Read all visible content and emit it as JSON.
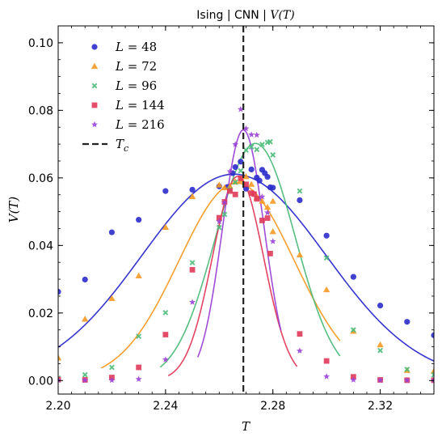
{
  "chart_data": {
    "type": "scatter",
    "title": "Ising | CNN | V(T)",
    "xlabel": "T",
    "ylabel": "V(T)",
    "xlim": [
      2.2,
      2.34
    ],
    "ylim": [
      -0.004,
      0.105
    ],
    "xticks": [
      2.2,
      2.24,
      2.28,
      2.32
    ],
    "xtick_labels": [
      "2.20",
      "2.24",
      "2.28",
      "2.32"
    ],
    "yticks": [
      0.0,
      0.02,
      0.04,
      0.06,
      0.08,
      0.1
    ],
    "ytick_labels": [
      "0.00",
      "0.02",
      "0.04",
      "0.06",
      "0.08",
      "0.10"
    ],
    "grid": false,
    "legend_position": "top-left",
    "tc": 2.269,
    "tc_label": "T_c",
    "series": [
      {
        "name": "L = 48",
        "label_main": "L",
        "label_rest": " = 48",
        "color": "#2b2bcc",
        "marker": "circle",
        "points": [
          [
            2.2,
            0.0263
          ],
          [
            2.21,
            0.0299
          ],
          [
            2.22,
            0.0439
          ],
          [
            2.23,
            0.0476
          ],
          [
            2.24,
            0.0561
          ],
          [
            2.25,
            0.0565
          ],
          [
            2.26,
            0.0575
          ],
          [
            2.263,
            0.0573
          ],
          [
            2.265,
            0.0614
          ],
          [
            2.266,
            0.0632
          ],
          [
            2.268,
            0.0648
          ],
          [
            2.27,
            0.0568
          ],
          [
            2.272,
            0.0625
          ],
          [
            2.274,
            0.0601
          ],
          [
            2.275,
            0.0592
          ],
          [
            2.276,
            0.0624
          ],
          [
            2.277,
            0.0614
          ],
          [
            2.278,
            0.0603
          ],
          [
            2.279,
            0.0572
          ],
          [
            2.28,
            0.0571
          ],
          [
            2.29,
            0.0534
          ],
          [
            2.3,
            0.0429
          ],
          [
            2.31,
            0.0307
          ],
          [
            2.32,
            0.0222
          ],
          [
            2.33,
            0.0174
          ],
          [
            2.34,
            0.0134
          ]
        ],
        "fit": {
          "amp": 0.0611,
          "mu": 2.2655,
          "sigma": 0.0343,
          "x0": 2.2,
          "x1": 2.34
        }
      },
      {
        "name": "L = 72",
        "label_main": "L",
        "label_rest": " = 72",
        "color": "#f59a23",
        "marker": "triangle",
        "points": [
          [
            2.2,
            0.0067
          ],
          [
            2.21,
            0.0182
          ],
          [
            2.22,
            0.0243
          ],
          [
            2.23,
            0.031
          ],
          [
            2.24,
            0.0454
          ],
          [
            2.25,
            0.0545
          ],
          [
            2.26,
            0.0579
          ],
          [
            2.262,
            0.0571
          ],
          [
            2.264,
            0.0575
          ],
          [
            2.266,
            0.0588
          ],
          [
            2.268,
            0.0593
          ],
          [
            2.27,
            0.0604
          ],
          [
            2.272,
            0.0581
          ],
          [
            2.274,
            0.0542
          ],
          [
            2.276,
            0.0531
          ],
          [
            2.278,
            0.0513
          ],
          [
            2.28,
            0.0531
          ],
          [
            2.28,
            0.0441
          ],
          [
            2.29,
            0.0372
          ],
          [
            2.3,
            0.0269
          ],
          [
            2.31,
            0.0146
          ],
          [
            2.32,
            0.0106
          ],
          [
            2.33,
            0.003
          ],
          [
            2.34,
            0.0028
          ]
        ],
        "fit": {
          "amp": 0.0585,
          "mu": 2.2665,
          "sigma": 0.0215,
          "x0": 2.216,
          "x1": 2.305
        }
      },
      {
        "name": "L = 96",
        "label_main": "L",
        "label_rest": " = 96",
        "color": "#4dbb7a",
        "marker": "x",
        "points": [
          [
            2.2,
            0.0007
          ],
          [
            2.21,
            0.0017
          ],
          [
            2.22,
            0.0039
          ],
          [
            2.23,
            0.0131
          ],
          [
            2.24,
            0.0201
          ],
          [
            2.25,
            0.0349
          ],
          [
            2.26,
            0.0453
          ],
          [
            2.262,
            0.0492
          ],
          [
            2.264,
            0.0565
          ],
          [
            2.266,
            0.0587
          ],
          [
            2.268,
            0.0621
          ],
          [
            2.27,
            0.0682
          ],
          [
            2.272,
            0.0692
          ],
          [
            2.274,
            0.0684
          ],
          [
            2.276,
            0.0699
          ],
          [
            2.278,
            0.0705
          ],
          [
            2.279,
            0.0707
          ],
          [
            2.28,
            0.0668
          ],
          [
            2.29,
            0.0561
          ],
          [
            2.3,
            0.0363
          ],
          [
            2.31,
            0.015
          ],
          [
            2.32,
            0.0089
          ],
          [
            2.33,
            0.0033
          ],
          [
            2.34,
            0.0017
          ]
        ],
        "fit": {
          "amp": 0.0702,
          "mu": 2.2735,
          "sigma": 0.0148,
          "x0": 2.238,
          "x1": 2.305
        }
      },
      {
        "name": "L = 144",
        "label_main": "L",
        "label_rest": " = 144",
        "color": "#e03a5a",
        "marker": "square",
        "points": [
          [
            2.2,
            0.0003
          ],
          [
            2.21,
            0.0002
          ],
          [
            2.22,
            0.0009
          ],
          [
            2.23,
            0.0039
          ],
          [
            2.24,
            0.0136
          ],
          [
            2.25,
            0.0328
          ],
          [
            2.26,
            0.0482
          ],
          [
            2.262,
            0.0529
          ],
          [
            2.264,
            0.0561
          ],
          [
            2.266,
            0.0551
          ],
          [
            2.268,
            0.0599
          ],
          [
            2.27,
            0.0581
          ],
          [
            2.272,
            0.0555
          ],
          [
            2.273,
            0.0552
          ],
          [
            2.274,
            0.0538
          ],
          [
            2.276,
            0.0474
          ],
          [
            2.278,
            0.0481
          ],
          [
            2.279,
            0.0376
          ],
          [
            2.29,
            0.0138
          ],
          [
            2.3,
            0.0058
          ],
          [
            2.31,
            0.0011
          ],
          [
            2.32,
            0.0002
          ],
          [
            2.33,
            0.0001
          ],
          [
            2.34,
            0.0001
          ]
        ],
        "fit": {
          "amp": 0.0605,
          "mu": 2.267,
          "sigma": 0.0095,
          "x0": 2.241,
          "x1": 2.289
        }
      },
      {
        "name": "L = 216",
        "label_main": "L",
        "label_rest": " = 216",
        "color": "#9b42d6",
        "marker": "star",
        "points": [
          [
            2.2,
            0.0001
          ],
          [
            2.21,
            0.0001
          ],
          [
            2.22,
            0.0001
          ],
          [
            2.23,
            0.0004
          ],
          [
            2.24,
            0.0062
          ],
          [
            2.25,
            0.0232
          ],
          [
            2.26,
            0.0471
          ],
          [
            2.262,
            0.0527
          ],
          [
            2.264,
            0.0619
          ],
          [
            2.266,
            0.0699
          ],
          [
            2.268,
            0.0803
          ],
          [
            2.27,
            0.0746
          ],
          [
            2.272,
            0.0728
          ],
          [
            2.274,
            0.0727
          ],
          [
            2.276,
            0.0544
          ],
          [
            2.278,
            0.0497
          ],
          [
            2.28,
            0.0412
          ],
          [
            2.29,
            0.0088
          ],
          [
            2.3,
            0.0012
          ],
          [
            2.31,
            0.0002
          ],
          [
            2.32,
            0.0001
          ],
          [
            2.33,
            0.0001
          ],
          [
            2.34,
            0.0001
          ]
        ],
        "fit": {
          "amp": 0.0742,
          "mu": 2.269,
          "sigma": 0.0078,
          "x0": 2.252,
          "x1": 2.283
        }
      }
    ]
  }
}
